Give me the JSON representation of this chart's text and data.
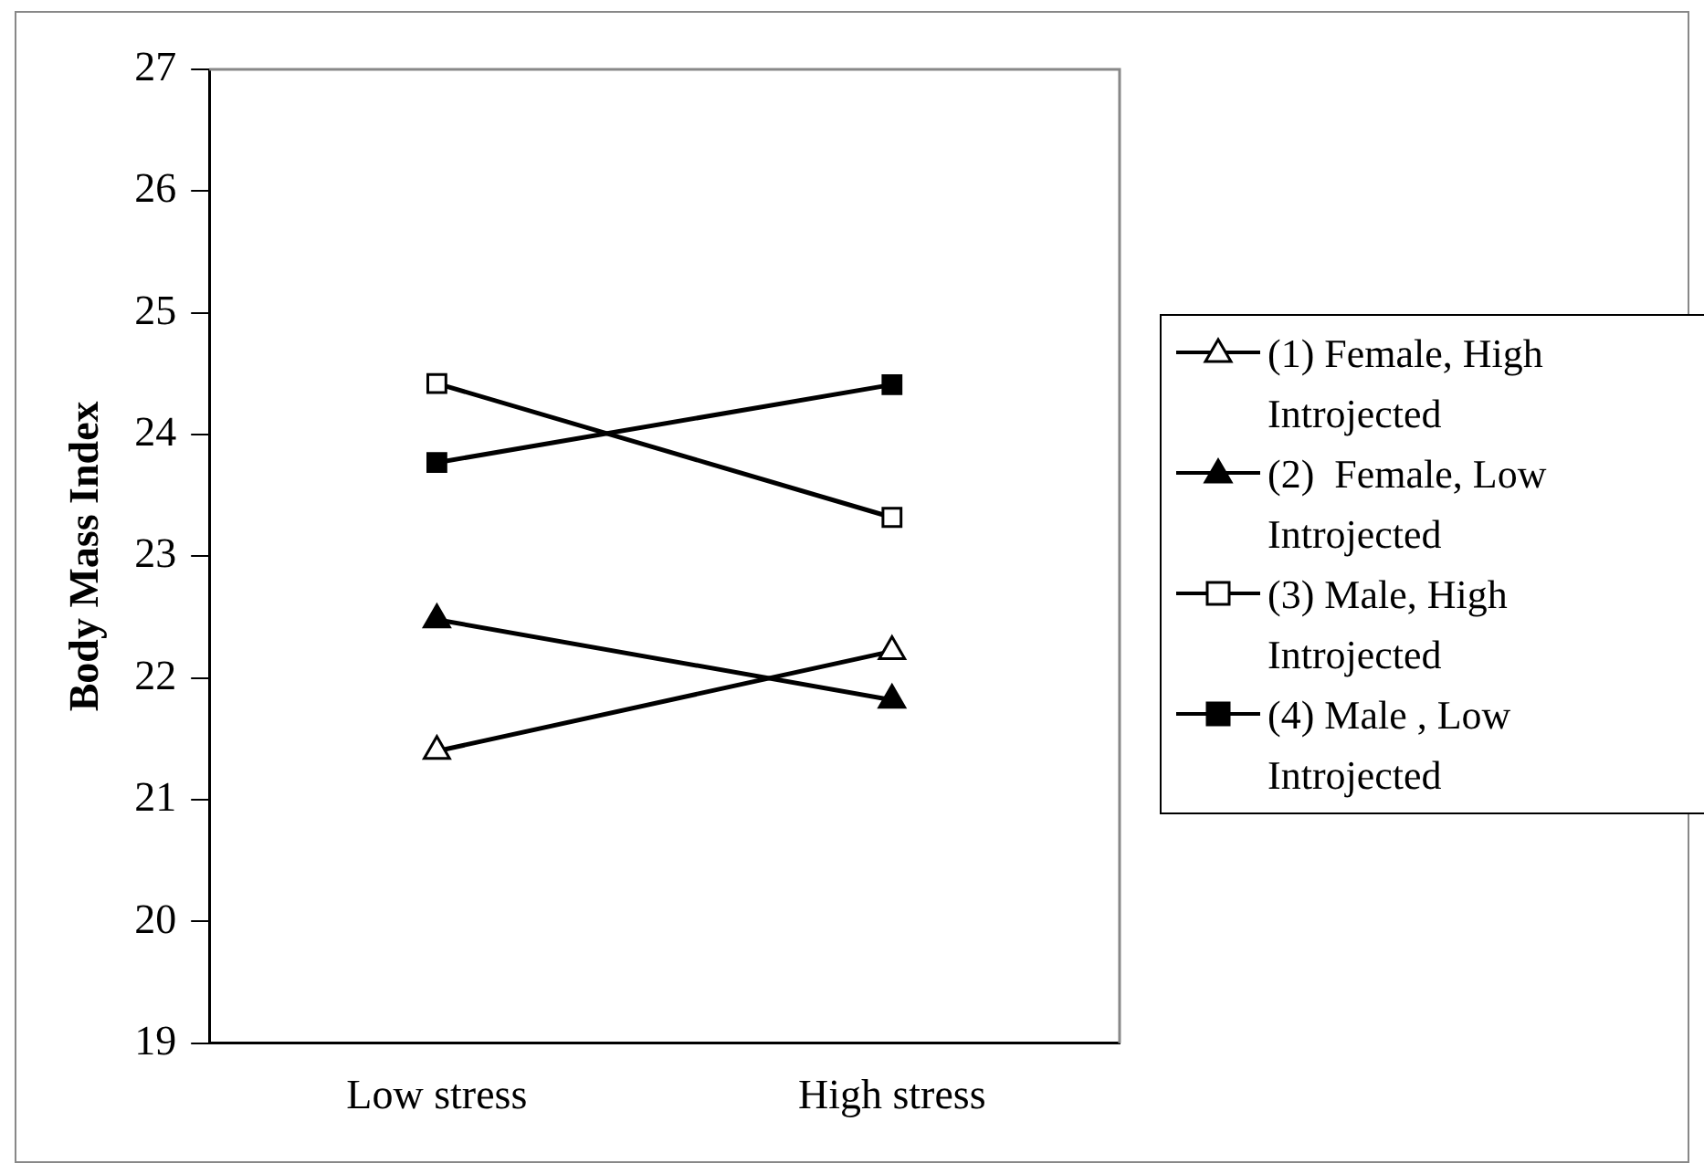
{
  "chart_data": {
    "type": "line",
    "ylabel": "Body Mass Index",
    "categories": [
      "Low stress",
      "High stress"
    ],
    "ylim": [
      19,
      27
    ],
    "yticks": [
      19,
      20,
      21,
      22,
      23,
      24,
      25,
      26,
      27
    ],
    "grid": false,
    "legend": "right",
    "line_style": "solid",
    "series": [
      {
        "name": "(1) Female, High Introjected",
        "color": "#000000",
        "marker": "triangle",
        "colors": [
          "#ffffff",
          "#ffffff"
        ],
        "values": [
          21.4,
          22.22
        ]
      },
      {
        "name": "(2)  Female, Low Introjected",
        "color": "#000000",
        "marker": "triangle",
        "colors": [
          "#000000",
          "#000000"
        ],
        "values": [
          22.48,
          21.82
        ]
      },
      {
        "name": "(3) Male, High Introjected",
        "color": "#000000",
        "marker": "square",
        "colors": [
          "#ffffff",
          "#ffffff"
        ],
        "values": [
          24.42,
          23.32
        ]
      },
      {
        "name": "(4) Male , Low Introjected",
        "color": "#000000",
        "marker": "square",
        "colors": [
          "#000000",
          "#000000"
        ],
        "values": [
          23.77,
          24.41
        ]
      }
    ]
  }
}
